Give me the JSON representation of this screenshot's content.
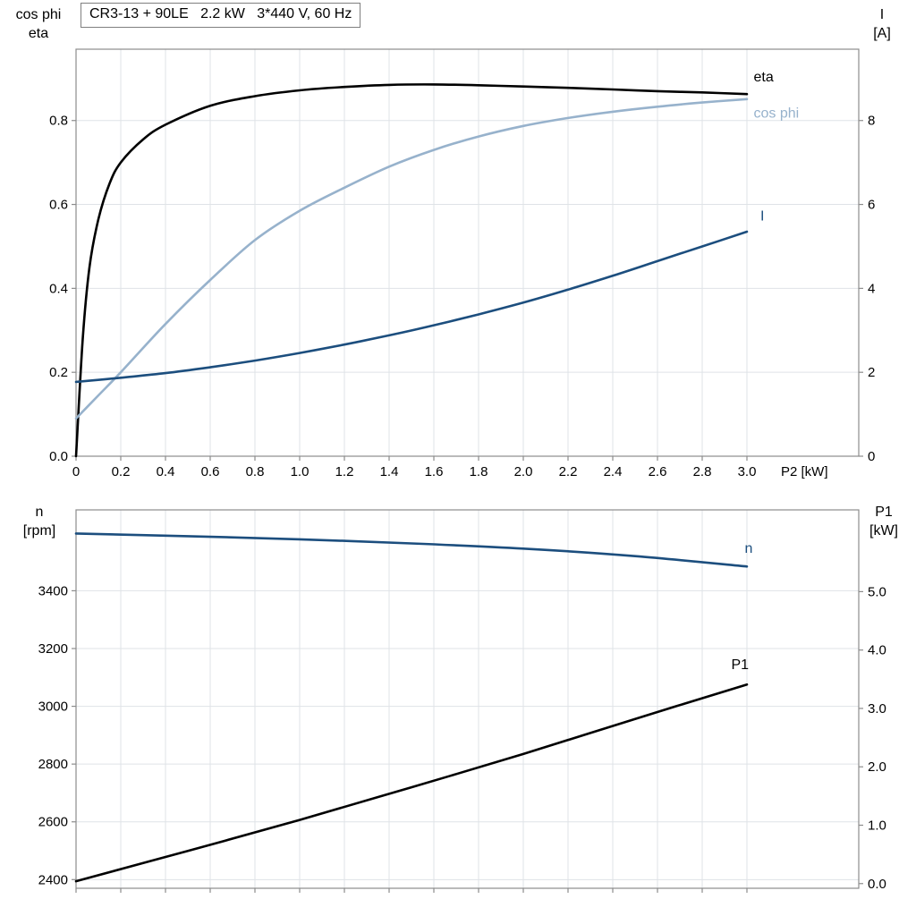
{
  "corner_labels": {
    "top_left": [
      "cos phi",
      "eta"
    ],
    "top_right": [
      "I",
      "[A]"
    ],
    "bottom_left": [
      "n",
      "[rpm]"
    ],
    "bottom_right": [
      "P1",
      "[kW]"
    ]
  },
  "colors": {
    "black": "#000000",
    "dark_blue": "#1c4e7e",
    "light_blue": "#97b2cc",
    "grid": "#dfe3e7",
    "frame": "#8c8c8c"
  },
  "chart_data": [
    {
      "type": "line",
      "title": "CR3-13 + 90LE   2.2 kW   3*440 V, 60 Hz",
      "x_axis": {
        "label": "P2 [kW]",
        "range": [
          0,
          3.5
        ],
        "ticks": [
          0,
          0.2,
          0.4,
          0.6,
          0.8,
          1.0,
          1.2,
          1.4,
          1.6,
          1.8,
          2.0,
          2.2,
          2.4,
          2.6,
          2.8,
          3.0
        ],
        "tick_labels": [
          "0",
          "0.2",
          "0.4",
          "0.6",
          "0.8",
          "1.0",
          "1.2",
          "1.4",
          "1.6",
          "1.8",
          "2.0",
          "2.2",
          "2.4",
          "2.6",
          "2.8",
          "3.0"
        ]
      },
      "y_left": {
        "label": "cos phi / eta",
        "range": [
          0,
          0.97
        ],
        "ticks": [
          0.0,
          0.2,
          0.4,
          0.6,
          0.8
        ],
        "tick_labels": [
          "0.0",
          "0.2",
          "0.4",
          "0.6",
          "0.8"
        ]
      },
      "y_right": {
        "label": "I [A]",
        "range": [
          0,
          9.7
        ],
        "ticks": [
          0,
          2,
          4,
          6,
          8
        ],
        "tick_labels": [
          "0",
          "2",
          "4",
          "6",
          "8"
        ]
      },
      "grid": true,
      "series": [
        {
          "name": "eta",
          "axis": "left",
          "color": "#000000",
          "x": [
            0,
            0.03,
            0.06,
            0.1,
            0.15,
            0.2,
            0.3,
            0.4,
            0.6,
            0.8,
            1.0,
            1.2,
            1.4,
            1.6,
            1.8,
            2.0,
            2.2,
            2.4,
            2.6,
            2.8,
            3.0
          ],
          "y": [
            0,
            0.28,
            0.45,
            0.565,
            0.65,
            0.7,
            0.755,
            0.79,
            0.835,
            0.858,
            0.872,
            0.88,
            0.885,
            0.886,
            0.884,
            0.881,
            0.878,
            0.874,
            0.87,
            0.867,
            0.863
          ]
        },
        {
          "name": "cos phi",
          "axis": "left",
          "color": "#97b2cc",
          "x": [
            0,
            0.1,
            0.2,
            0.4,
            0.6,
            0.8,
            1.0,
            1.2,
            1.4,
            1.6,
            1.8,
            2.0,
            2.2,
            2.4,
            2.6,
            2.8,
            3.0
          ],
          "y": [
            0.09,
            0.145,
            0.2,
            0.315,
            0.42,
            0.515,
            0.585,
            0.64,
            0.69,
            0.73,
            0.762,
            0.787,
            0.806,
            0.821,
            0.833,
            0.843,
            0.851
          ]
        },
        {
          "name": "I",
          "axis": "right",
          "color": "#1c4e7e",
          "x": [
            0,
            0.2,
            0.4,
            0.6,
            0.8,
            1.0,
            1.2,
            1.4,
            1.6,
            1.8,
            2.0,
            2.2,
            2.4,
            2.6,
            2.8,
            3.0
          ],
          "y": [
            1.77,
            1.87,
            1.98,
            2.12,
            2.28,
            2.46,
            2.66,
            2.88,
            3.12,
            3.38,
            3.66,
            3.97,
            4.3,
            4.65,
            5.0,
            5.35
          ]
        }
      ],
      "annotations": [
        {
          "text": "eta",
          "axis": "left",
          "x": 3.03,
          "y": 0.893,
          "color": "#000000"
        },
        {
          "text": "cos phi",
          "axis": "left",
          "x": 3.03,
          "y": 0.807,
          "color": "#97b2cc"
        },
        {
          "text": "I",
          "axis": "right",
          "x": 3.06,
          "y": 5.62,
          "color": "#1c4e7e"
        }
      ]
    },
    {
      "type": "line",
      "title": "",
      "x_axis": {
        "label": "",
        "range": [
          0,
          3.5
        ],
        "ticks": [
          0,
          0.2,
          0.4,
          0.6,
          0.8,
          1.0,
          1.2,
          1.4,
          1.6,
          1.8,
          2.0,
          2.2,
          2.4,
          2.6,
          2.8,
          3.0
        ],
        "tick_labels": []
      },
      "y_left": {
        "label": "n [rpm]",
        "range": [
          2370,
          3680
        ],
        "ticks": [
          2400,
          2600,
          2800,
          3000,
          3200,
          3400
        ],
        "tick_labels": [
          "2400",
          "2600",
          "2800",
          "3000",
          "3200",
          "3400"
        ]
      },
      "y_right": {
        "label": "P1 [kW]",
        "range": [
          -0.08,
          6.4
        ],
        "ticks": [
          0.0,
          1.0,
          2.0,
          3.0,
          4.0,
          5.0
        ],
        "tick_labels": [
          "0.0",
          "1.0",
          "2.0",
          "3.0",
          "4.0",
          "5.0"
        ]
      },
      "grid": true,
      "series": [
        {
          "name": "n",
          "axis": "left",
          "color": "#1c4e7e",
          "x": [
            0,
            0.5,
            1.0,
            1.5,
            2.0,
            2.5,
            3.0
          ],
          "y": [
            3598,
            3589,
            3578,
            3564,
            3546,
            3520,
            3484
          ]
        },
        {
          "name": "P1",
          "axis": "right",
          "color": "#000000",
          "x": [
            0,
            0.5,
            1.0,
            1.5,
            2.0,
            2.5,
            3.0
          ],
          "y": [
            0.04,
            0.56,
            1.09,
            1.65,
            2.22,
            2.82,
            3.41
          ]
        }
      ],
      "annotations": [
        {
          "text": "n",
          "axis": "left",
          "x": 2.99,
          "y": 3531,
          "color": "#1c4e7e"
        },
        {
          "text": "P1",
          "axis": "right",
          "x": 2.93,
          "y": 3.67,
          "color": "#000000"
        }
      ]
    }
  ]
}
